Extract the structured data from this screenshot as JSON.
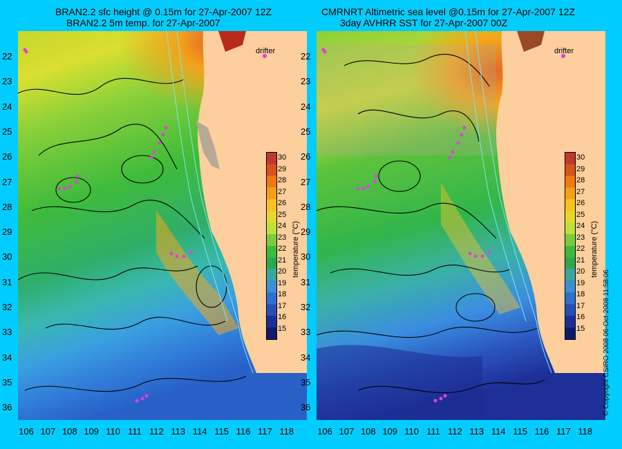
{
  "left_panel": {
    "title_line1": "BRAN2.2 sfc height @ 0.15m for 27-Apr-2007 12Z",
    "title_line2": "BRAN2.2 5m temp. for 27-Apr-2007",
    "drifter_label": "drifter"
  },
  "right_panel": {
    "title_line1": "CMRNRT Altimetric sea level  @0.15m  for 27-Apr-2007 12Z",
    "title_line2": "3day AVHRR SST for 27-Apr-2007 00Z",
    "drifter_label": "drifter"
  },
  "latitudes": [
    "22",
    "23",
    "24",
    "25",
    "26",
    "27",
    "28",
    "29",
    "30",
    "31",
    "32",
    "33",
    "34",
    "35",
    "36"
  ],
  "longitudes": [
    "106",
    "107",
    "108",
    "109",
    "110",
    "111",
    "112",
    "113",
    "114",
    "115",
    "116",
    "117",
    "118"
  ],
  "colorbar": {
    "title": "temperature (°C)",
    "ticks": [
      "30",
      "29",
      "28",
      "27",
      "26",
      "25",
      "24",
      "23",
      "22",
      "21",
      "20",
      "19",
      "18",
      "17",
      "16",
      "15"
    ],
    "colors": [
      "#c0392b",
      "#d9531e",
      "#f07a10",
      "#f59f18",
      "#f7c21d",
      "#e7d92a",
      "#bde03a",
      "#7acc3c",
      "#3dba3c",
      "#2ea84c",
      "#3aa6a0",
      "#3a8fd8",
      "#2f6fd0",
      "#2450b8",
      "#1b2f9a",
      "#101a6a"
    ]
  },
  "land_color": "#fccf9c",
  "copyright": "© Copyright CSIRO 2008     06-Oct-2008 11:58:06"
}
